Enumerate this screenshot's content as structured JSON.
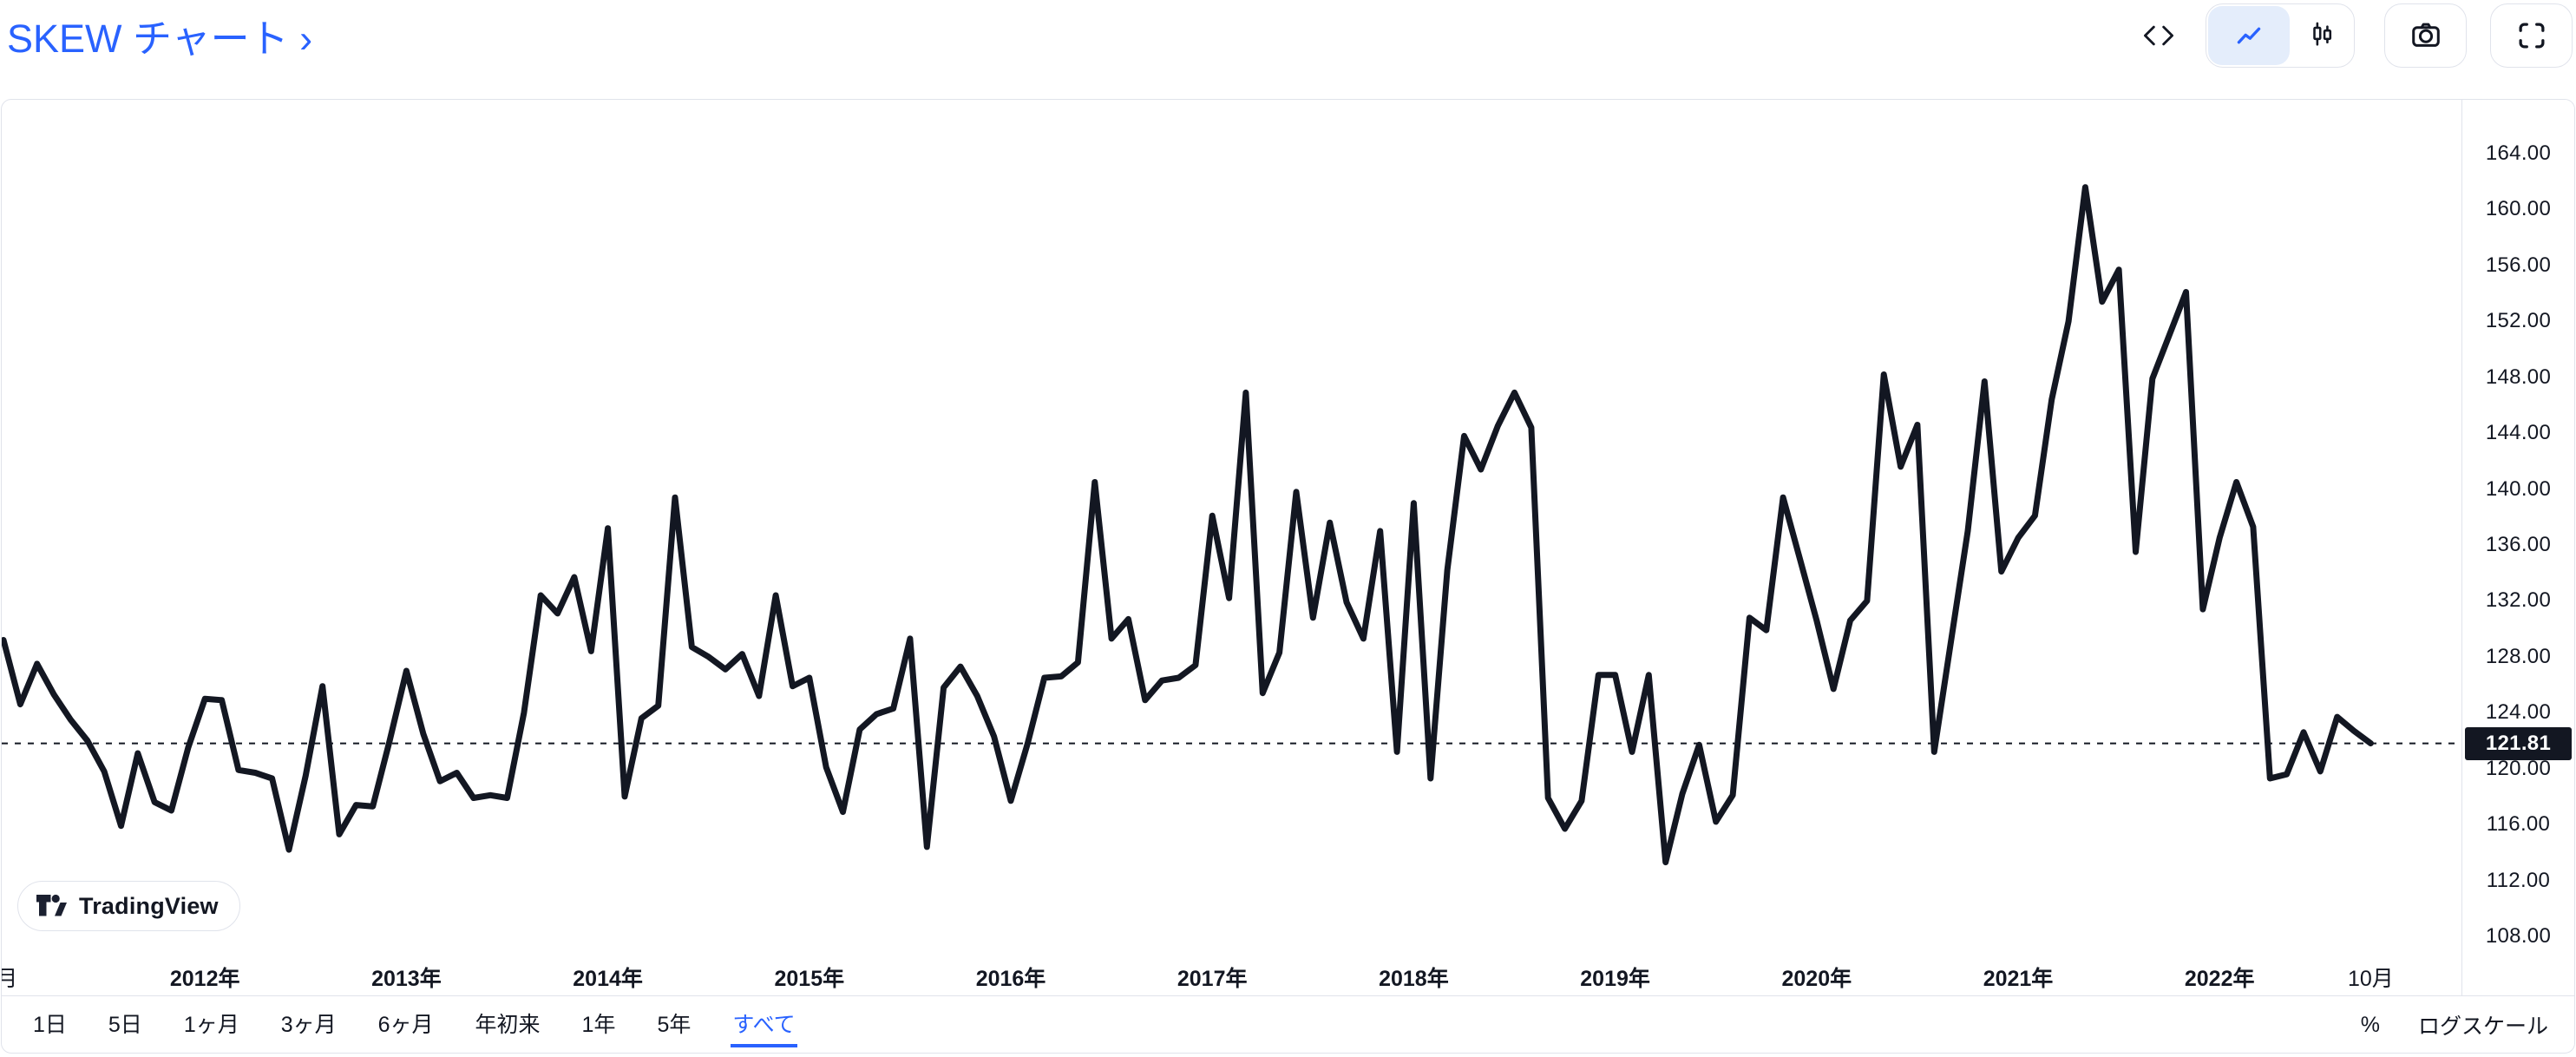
{
  "header": {
    "title": "SKEW チャート ›",
    "icons": [
      "code-icon",
      "line-style-icon",
      "candles-style-icon",
      "camera-icon",
      "fullscreen-icon"
    ],
    "selected_style": "line"
  },
  "colors": {
    "accent": "#2962ff",
    "ink": "#131722",
    "border": "#e0e3eb",
    "active_icon_bg": "#e4edfb",
    "badge_bg": "#131722",
    "badge_text": "#ffffff",
    "line": "#131722"
  },
  "chart_data": {
    "type": "line",
    "title": "SKEW チャート",
    "interval": "monthly",
    "start": "2011-01",
    "end": "2022-10",
    "ylim": [
      106.5,
      167.1
    ],
    "grid": false,
    "legend": "none",
    "last_price": 121.81,
    "values": [
      129.2,
      124.6,
      127.5,
      125.3,
      123.5,
      122.0,
      119.8,
      115.9,
      121.1,
      117.6,
      117.0,
      121.5,
      125.0,
      124.9,
      119.9,
      119.7,
      119.3,
      114.2,
      119.5,
      125.9,
      115.3,
      117.4,
      117.3,
      122.0,
      127.0,
      122.5,
      119.1,
      119.7,
      117.9,
      118.1,
      117.9,
      124.0,
      132.4,
      131.1,
      133.7,
      128.4,
      137.2,
      118.0,
      123.6,
      124.5,
      139.4,
      128.7,
      128.0,
      127.1,
      128.2,
      125.2,
      132.4,
      125.9,
      126.5,
      120.1,
      116.9,
      122.8,
      123.9,
      124.3,
      129.3,
      114.4,
      125.8,
      127.3,
      125.2,
      122.3,
      117.7,
      121.8,
      126.5,
      126.6,
      127.6,
      140.5,
      129.3,
      130.7,
      124.9,
      126.3,
      126.5,
      127.4,
      138.1,
      132.2,
      146.9,
      125.4,
      128.3,
      139.8,
      130.8,
      137.6,
      131.9,
      129.3,
      137.0,
      121.2,
      139.0,
      119.3,
      134.2,
      143.8,
      141.4,
      144.5,
      146.9,
      144.4,
      117.9,
      115.7,
      117.7,
      126.7,
      126.7,
      121.2,
      126.7,
      113.3,
      118.2,
      121.7,
      116.2,
      118.1,
      130.8,
      129.9,
      139.4,
      135.0,
      130.6,
      125.7,
      130.6,
      132.0,
      148.2,
      141.6,
      144.6,
      121.2,
      129.1,
      137.0,
      147.7,
      134.1,
      136.5,
      138.1,
      146.4,
      152.0,
      161.6,
      153.4,
      155.7,
      135.5,
      147.9,
      151.0,
      154.1,
      131.4,
      136.5,
      140.5,
      137.3,
      119.3,
      119.6,
      122.6,
      119.8,
      123.7,
      122.7,
      121.81
    ]
  },
  "price_scale": {
    "ticks": [
      "164.00",
      "160.00",
      "156.00",
      "152.00",
      "148.00",
      "144.00",
      "140.00",
      "136.00",
      "132.00",
      "128.00",
      "124.00",
      "120.00",
      "116.00",
      "112.00",
      "108.00"
    ],
    "last_value_label": "121.81"
  },
  "x_axis": {
    "labels": [
      {
        "text": "月",
        "m": 0.2,
        "bold": false
      },
      {
        "text": "2012年",
        "m": 12,
        "bold": true
      },
      {
        "text": "2013年",
        "m": 24,
        "bold": true
      },
      {
        "text": "2014年",
        "m": 36,
        "bold": true
      },
      {
        "text": "2015年",
        "m": 48,
        "bold": true
      },
      {
        "text": "2016年",
        "m": 60,
        "bold": true
      },
      {
        "text": "2017年",
        "m": 72,
        "bold": true
      },
      {
        "text": "2018年",
        "m": 84,
        "bold": true
      },
      {
        "text": "2019年",
        "m": 96,
        "bold": true
      },
      {
        "text": "2020年",
        "m": 108,
        "bold": true
      },
      {
        "text": "2021年",
        "m": 120,
        "bold": true
      },
      {
        "text": "2022年",
        "m": 132,
        "bold": true
      },
      {
        "text": "10月",
        "m": 141,
        "bold": false
      }
    ]
  },
  "logo": {
    "label": "TradingView"
  },
  "toolbar": {
    "ranges": [
      "1日",
      "5日",
      "1ヶ月",
      "3ヶ月",
      "6ヶ月",
      "年初来",
      "1年",
      "5年",
      "すべて"
    ],
    "selected": "すべて",
    "percent_label": "%",
    "log_scale_label": "ログスケール"
  }
}
